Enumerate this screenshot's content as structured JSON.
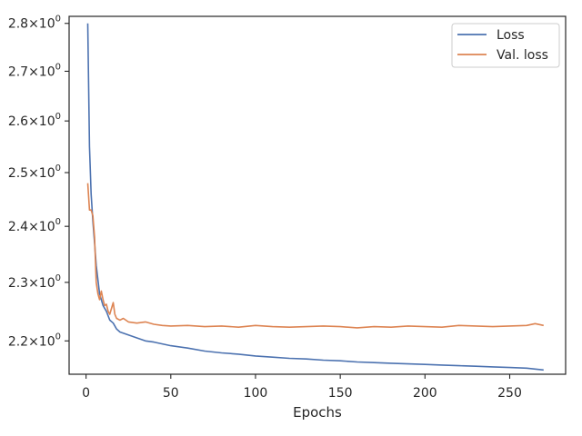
{
  "chart_data": {
    "type": "line",
    "title": "",
    "xlabel": "Epochs",
    "ylabel": "",
    "yscale": "log",
    "xlim": [
      -10,
      283
    ],
    "ylim": [
      2.145,
      2.815
    ],
    "grid": false,
    "legend_position": "top-right",
    "x_ticks": [
      0,
      50,
      100,
      150,
      200,
      250
    ],
    "x_tick_labels": [
      "0",
      "50",
      "100",
      "150",
      "200",
      "250"
    ],
    "y_ticks": [
      2.2,
      2.3,
      2.4,
      2.5,
      2.6,
      2.7,
      2.8
    ],
    "y_tick_labels": [
      {
        "mantissa": "2.2",
        "times": "×",
        "base": "10",
        "exp": "0"
      },
      {
        "mantissa": "2.3",
        "times": "×",
        "base": "10",
        "exp": "0"
      },
      {
        "mantissa": "2.4",
        "times": "×",
        "base": "10",
        "exp": "0"
      },
      {
        "mantissa": "2.5",
        "times": "×",
        "base": "10",
        "exp": "0"
      },
      {
        "mantissa": "2.6",
        "times": "×",
        "base": "10",
        "exp": "0"
      },
      {
        "mantissa": "2.7",
        "times": "×",
        "base": "10",
        "exp": "0"
      },
      {
        "mantissa": "2.8",
        "times": "×",
        "base": "10",
        "exp": "0"
      }
    ],
    "series": [
      {
        "name": "Loss",
        "color": "#4c72b0",
        "x": [
          1,
          2,
          3,
          4,
          5,
          6,
          8,
          10,
          12,
          14,
          16,
          18,
          20,
          25,
          30,
          35,
          40,
          50,
          60,
          70,
          80,
          90,
          100,
          110,
          120,
          130,
          140,
          150,
          160,
          170,
          180,
          190,
          200,
          210,
          220,
          230,
          240,
          250,
          260,
          270
        ],
        "y": [
          2.8,
          2.55,
          2.46,
          2.41,
          2.37,
          2.33,
          2.28,
          2.26,
          2.25,
          2.235,
          2.23,
          2.22,
          2.215,
          2.21,
          2.205,
          2.2,
          2.198,
          2.192,
          2.188,
          2.183,
          2.18,
          2.178,
          2.175,
          2.173,
          2.171,
          2.17,
          2.168,
          2.167,
          2.165,
          2.164,
          2.163,
          2.162,
          2.161,
          2.16,
          2.159,
          2.158,
          2.157,
          2.156,
          2.155,
          2.152
        ]
      },
      {
        "name": "Val. loss",
        "color": "#dd8452",
        "x": [
          1,
          2,
          3,
          4,
          5,
          6,
          7,
          8,
          9,
          10,
          11,
          12,
          13,
          14,
          15,
          16,
          17,
          18,
          20,
          22,
          25,
          30,
          35,
          40,
          45,
          50,
          60,
          70,
          80,
          90,
          100,
          110,
          120,
          130,
          140,
          150,
          160,
          170,
          180,
          190,
          200,
          210,
          220,
          230,
          240,
          250,
          260,
          265,
          270
        ],
        "y": [
          2.48,
          2.43,
          2.43,
          2.42,
          2.38,
          2.3,
          2.28,
          2.27,
          2.285,
          2.27,
          2.26,
          2.262,
          2.25,
          2.245,
          2.255,
          2.265,
          2.245,
          2.238,
          2.235,
          2.238,
          2.232,
          2.23,
          2.232,
          2.228,
          2.226,
          2.225,
          2.226,
          2.224,
          2.225,
          2.223,
          2.226,
          2.224,
          2.223,
          2.224,
          2.225,
          2.224,
          2.222,
          2.224,
          2.223,
          2.225,
          2.224,
          2.223,
          2.226,
          2.225,
          2.224,
          2.225,
          2.226,
          2.229,
          2.226
        ]
      }
    ]
  }
}
